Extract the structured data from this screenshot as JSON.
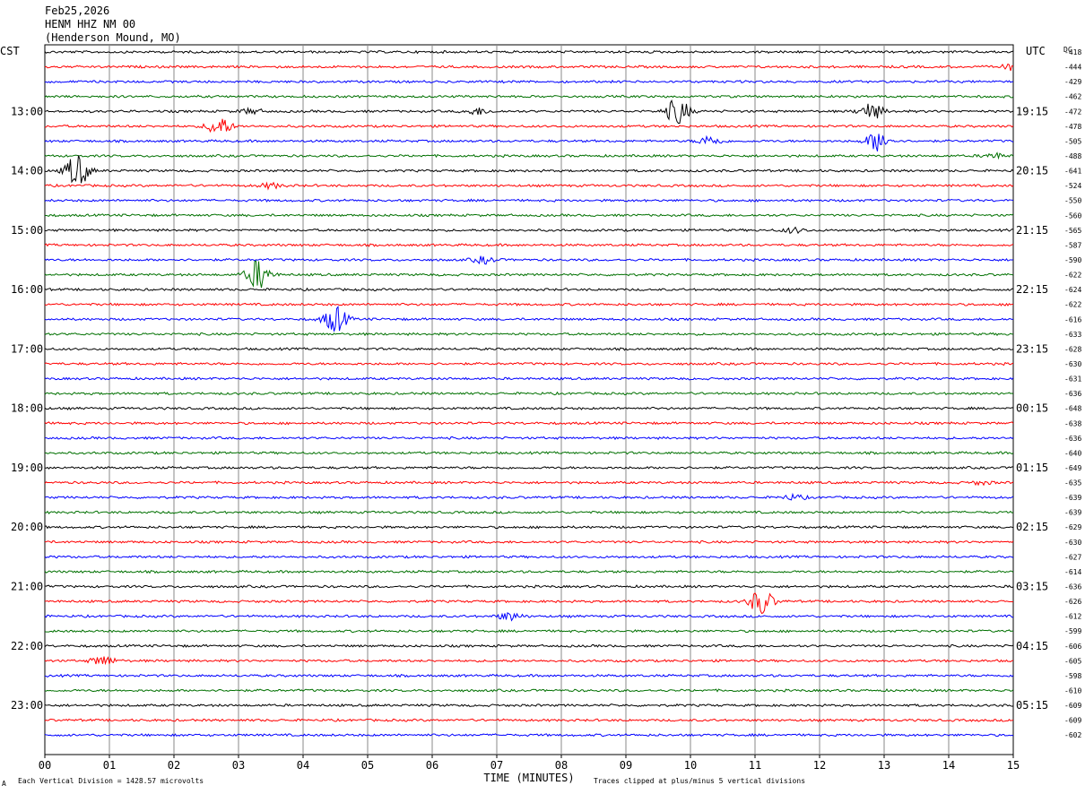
{
  "header": {
    "date": "Feb25,2026",
    "station": "HENM HHZ NM 00",
    "location": "(Henderson Mound, MO)",
    "left_tz": "CST",
    "right_tz": "UTC",
    "dc_label": "DC"
  },
  "footer": {
    "xlabel": "TIME (MINUTES)",
    "scale_note": "Each Vertical Division = 1428.57 microvolts",
    "clip_note": "Traces clipped at plus/minus 5 vertical divisions",
    "corner_mark": "A"
  },
  "chart_data": {
    "type": "line",
    "title": "HENM HHZ NM 00",
    "xlabel": "TIME (MINUTES)",
    "xlim": [
      0,
      15
    ],
    "x_ticks": [
      "00",
      "01",
      "02",
      "03",
      "04",
      "05",
      "06",
      "07",
      "08",
      "09",
      "10",
      "11",
      "12",
      "13",
      "14",
      "15"
    ],
    "grid": true,
    "trace_colors": [
      "#000000",
      "#ff0000",
      "#0000ff",
      "#007000"
    ],
    "trace_interval_minutes": 15,
    "left_hour_labels": [
      "13:00",
      "14:00",
      "15:00",
      "16:00",
      "17:00",
      "18:00",
      "19:00",
      "20:00",
      "21:00",
      "22:00",
      "23:00"
    ],
    "right_hour_labels": [
      "19:15",
      "20:15",
      "21:15",
      "22:15",
      "23:15",
      "00:15",
      "01:15",
      "02:15",
      "03:15",
      "04:15",
      "05:15"
    ],
    "dc_offsets": [
      -418,
      -444,
      -429,
      -462,
      -472,
      -478,
      -505,
      -488,
      -641,
      -524,
      -550,
      -560,
      -565,
      -587,
      -590,
      -622,
      -624,
      -622,
      -616,
      -633,
      -628,
      -630,
      -631,
      -636,
      -648,
      -638,
      -636,
      -640,
      -649,
      -635,
      -639,
      -639,
      -629,
      -630,
      -627,
      -614,
      -636,
      -626,
      -612,
      -599,
      -606,
      -605,
      -598,
      -610,
      -609,
      -609,
      -602
    ],
    "events": [
      {
        "trace": 1,
        "minute": 15.0,
        "amplitude": 0.4
      },
      {
        "trace": 4,
        "minute": 9.8,
        "amplitude": 1.6
      },
      {
        "trace": 4,
        "minute": 12.8,
        "amplitude": 1.0
      },
      {
        "trace": 4,
        "minute": 6.7,
        "amplitude": 0.4
      },
      {
        "trace": 4,
        "minute": 3.2,
        "amplitude": 0.3
      },
      {
        "trace": 5,
        "minute": 2.7,
        "amplitude": 1.2
      },
      {
        "trace": 6,
        "minute": 10.3,
        "amplitude": 0.6
      },
      {
        "trace": 6,
        "minute": 12.9,
        "amplitude": 1.2
      },
      {
        "trace": 7,
        "minute": 14.7,
        "amplitude": 0.3
      },
      {
        "trace": 8,
        "minute": 0.5,
        "amplitude": 2.0
      },
      {
        "trace": 9,
        "minute": 3.5,
        "amplitude": 0.3
      },
      {
        "trace": 12,
        "minute": 11.6,
        "amplitude": 0.3
      },
      {
        "trace": 14,
        "minute": 6.8,
        "amplitude": 0.4
      },
      {
        "trace": 15,
        "minute": 3.3,
        "amplitude": 1.8
      },
      {
        "trace": 18,
        "minute": 4.5,
        "amplitude": 1.6
      },
      {
        "trace": 30,
        "minute": 11.6,
        "amplitude": 0.3
      },
      {
        "trace": 29,
        "minute": 14.5,
        "amplitude": 0.2
      },
      {
        "trace": 37,
        "minute": 11.1,
        "amplitude": 1.6
      },
      {
        "trace": 38,
        "minute": 7.2,
        "amplitude": 0.5
      },
      {
        "trace": 41,
        "minute": 0.9,
        "amplitude": 0.6
      }
    ]
  }
}
